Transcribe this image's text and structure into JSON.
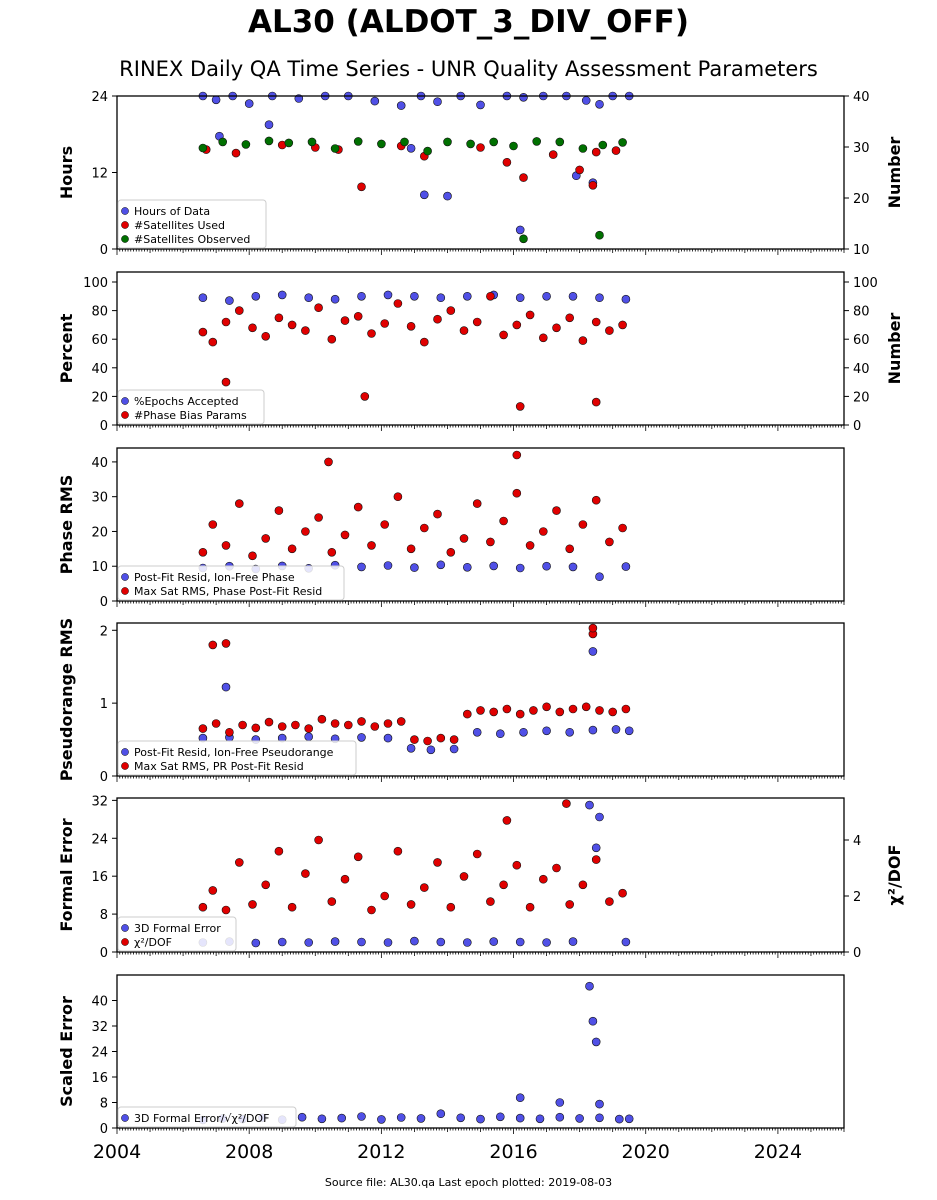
{
  "figure": {
    "title": "AL30 (ALDOT_3_DIV_OFF)",
    "subtitle": "RINEX Daily QA Time Series - UNR Quality Assessment Parameters",
    "footer": "Source file: AL30.qa Last epoch plotted: 2019-08-03"
  },
  "chart_data": [
    {
      "type": "scatter",
      "ylabel": "Hours",
      "ylabel_right": "Number",
      "ylim": [
        0,
        24
      ],
      "yticks": [
        0,
        12,
        24
      ],
      "ylim_right": [
        10,
        40
      ],
      "yticks_right": [
        10,
        20,
        30,
        40
      ],
      "xlim": [
        2004,
        2026
      ],
      "xticks": [
        2004,
        2008,
        2012,
        2016,
        2020,
        2024
      ],
      "xtick_labels_shown": false,
      "legend": "lower-left",
      "series": [
        {
          "name": "Hours of Data",
          "axis": "left",
          "color": "#5050e6",
          "x": [
            2006.6,
            2007.0,
            2007.5,
            2008.0,
            2008.7,
            2009.5,
            2010.3,
            2011.0,
            2011.8,
            2012.6,
            2013.2,
            2013.7,
            2014.4,
            2015.0,
            2015.8,
            2016.3,
            2016.9,
            2017.6,
            2018.2,
            2018.6,
            2019.0,
            2019.5,
            2007.1,
            2008.6,
            2012.9,
            2013.3,
            2014.0,
            2016.2,
            2017.9,
            2018.4
          ],
          "y": [
            24,
            23.4,
            24,
            22.8,
            24,
            23.6,
            24,
            24,
            23.2,
            22.5,
            24,
            23.1,
            24,
            22.6,
            24,
            23.8,
            24,
            24,
            23.3,
            22.7,
            24,
            24,
            17.7,
            19.5,
            15.8,
            8.5,
            8.3,
            3.0,
            11.5,
            10.4
          ]
        },
        {
          "name": "#Satellites Used",
          "axis": "right",
          "color": "#e00000",
          "x": [
            2006.7,
            2007.6,
            2009.0,
            2010.0,
            2010.7,
            2012.6,
            2013.3,
            2015.0,
            2015.8,
            2016.3,
            2017.2,
            2018.0,
            2018.5,
            2019.1,
            2011.4,
            2018.4
          ],
          "y": [
            29.5,
            28.8,
            30.4,
            29.9,
            29.5,
            30.2,
            28.2,
            29.9,
            27.0,
            24.0,
            28.5,
            25.5,
            29.0,
            29.3,
            22.2,
            22.5
          ]
        },
        {
          "name": "#Satellites Observed",
          "axis": "right",
          "color": "#007000",
          "x": [
            2006.6,
            2007.2,
            2007.9,
            2008.6,
            2009.2,
            2009.9,
            2010.6,
            2011.3,
            2012.0,
            2012.7,
            2013.4,
            2014.0,
            2014.7,
            2015.4,
            2016.0,
            2016.7,
            2017.4,
            2018.1,
            2018.7,
            2019.3,
            2016.3,
            2018.6
          ],
          "y": [
            29.8,
            31.0,
            30.5,
            31.2,
            30.8,
            31.0,
            29.7,
            31.1,
            30.6,
            31.0,
            29.2,
            31.0,
            30.6,
            31.0,
            30.2,
            31.1,
            31.0,
            29.7,
            30.4,
            30.9,
            12.0,
            12.7
          ]
        }
      ]
    },
    {
      "type": "scatter",
      "ylabel": "Percent",
      "ylabel_right": "Number",
      "ylim": [
        0,
        107
      ],
      "yticks": [
        0,
        20,
        40,
        60,
        80,
        100
      ],
      "ylim_right": [
        0,
        107
      ],
      "yticks_right": [
        0,
        20,
        40,
        60,
        80,
        100
      ],
      "xlim": [
        2004,
        2026
      ],
      "xticks": [
        2004,
        2008,
        2012,
        2016,
        2020,
        2024
      ],
      "xtick_labels_shown": false,
      "legend": "lower-left",
      "series": [
        {
          "name": "%Epochs Accepted",
          "axis": "left",
          "color": "#5050e6",
          "x": [
            2006.6,
            2007.4,
            2008.2,
            2009.0,
            2009.8,
            2010.6,
            2011.4,
            2012.2,
            2013.0,
            2013.8,
            2014.6,
            2015.4,
            2016.2,
            2017.0,
            2017.8,
            2018.6,
            2019.4
          ],
          "y": [
            89,
            87,
            90,
            91,
            89,
            88,
            90,
            91,
            90,
            89,
            90,
            91,
            89,
            90,
            90,
            89,
            88
          ]
        },
        {
          "name": "#Phase Bias Params",
          "axis": "right",
          "color": "#e00000",
          "x": [
            2006.6,
            2006.9,
            2007.3,
            2007.7,
            2008.1,
            2008.5,
            2008.9,
            2009.3,
            2009.7,
            2010.1,
            2010.5,
            2010.9,
            2011.3,
            2011.7,
            2012.1,
            2012.5,
            2012.9,
            2013.3,
            2013.7,
            2014.1,
            2014.5,
            2014.9,
            2015.3,
            2015.7,
            2016.1,
            2016.5,
            2016.9,
            2017.3,
            2017.7,
            2018.1,
            2018.5,
            2018.9,
            2019.3,
            2007.3,
            2011.5,
            2016.2,
            2018.5
          ],
          "y": [
            65,
            58,
            72,
            80,
            68,
            62,
            75,
            70,
            66,
            82,
            60,
            73,
            76,
            64,
            71,
            85,
            69,
            58,
            74,
            80,
            66,
            72,
            90,
            63,
            70,
            77,
            61,
            68,
            75,
            59,
            72,
            66,
            70,
            30,
            20,
            13,
            16
          ]
        }
      ]
    },
    {
      "type": "scatter",
      "ylabel": "Phase RMS",
      "ylim": [
        0,
        44
      ],
      "yticks": [
        0,
        10,
        20,
        30,
        40
      ],
      "xlim": [
        2004,
        2026
      ],
      "xticks": [
        2004,
        2008,
        2012,
        2016,
        2020,
        2024
      ],
      "xtick_labels_shown": false,
      "legend": "lower-left",
      "series": [
        {
          "name": "Post-Fit Resid, Ion-Free Phase",
          "color": "#5050e6",
          "x": [
            2006.6,
            2007.4,
            2008.2,
            2009.0,
            2009.8,
            2010.6,
            2011.4,
            2012.2,
            2013.0,
            2013.8,
            2014.6,
            2015.4,
            2016.2,
            2017.0,
            2017.8,
            2018.6,
            2019.4
          ],
          "y": [
            9.5,
            10.0,
            9.2,
            10.1,
            9.4,
            10.3,
            9.8,
            10.2,
            9.6,
            10.4,
            9.7,
            10.1,
            9.5,
            10.0,
            9.8,
            7.0,
            9.9
          ]
        },
        {
          "name": "Max Sat RMS, Phase Post-Fit Resid",
          "color": "#e00000",
          "x": [
            2006.6,
            2006.9,
            2007.3,
            2007.7,
            2008.1,
            2008.5,
            2008.9,
            2009.3,
            2009.7,
            2010.1,
            2010.5,
            2010.9,
            2011.3,
            2011.7,
            2012.1,
            2012.5,
            2012.9,
            2013.3,
            2013.7,
            2014.1,
            2014.5,
            2014.9,
            2015.3,
            2015.7,
            2016.1,
            2016.5,
            2016.9,
            2017.3,
            2017.7,
            2018.1,
            2018.5,
            2018.9,
            2019.3,
            2010.4,
            2016.1
          ],
          "y": [
            14,
            22,
            16,
            28,
            13,
            18,
            26,
            15,
            20,
            24,
            14,
            19,
            27,
            16,
            22,
            30,
            15,
            21,
            25,
            14,
            18,
            28,
            17,
            23,
            31,
            16,
            20,
            26,
            15,
            22,
            29,
            17,
            21,
            40,
            42
          ]
        }
      ]
    },
    {
      "type": "scatter",
      "ylabel": "Pseudorange RMS",
      "ylim": [
        0,
        2.1
      ],
      "yticks": [
        0,
        1,
        2
      ],
      "xlim": [
        2004,
        2026
      ],
      "xticks": [
        2004,
        2008,
        2012,
        2016,
        2020,
        2024
      ],
      "xtick_labels_shown": false,
      "legend": "lower-left",
      "series": [
        {
          "name": "Post-Fit Resid, Ion-Free Pseudorange",
          "color": "#5050e6",
          "x": [
            2006.6,
            2007.4,
            2008.2,
            2009.0,
            2009.8,
            2010.6,
            2011.4,
            2012.2,
            2012.9,
            2013.5,
            2014.2,
            2014.9,
            2015.6,
            2016.3,
            2017.0,
            2017.7,
            2018.4,
            2019.1,
            2019.5,
            2007.3,
            2018.4
          ],
          "y": [
            0.52,
            0.53,
            0.5,
            0.52,
            0.54,
            0.51,
            0.53,
            0.52,
            0.38,
            0.36,
            0.37,
            0.6,
            0.58,
            0.6,
            0.62,
            0.6,
            0.63,
            0.64,
            0.62,
            1.22,
            1.71
          ]
        },
        {
          "name": "Max Sat RMS, PR Post-Fit Resid",
          "color": "#e00000",
          "x": [
            2006.6,
            2007.0,
            2007.4,
            2007.8,
            2008.2,
            2008.6,
            2009.0,
            2009.4,
            2009.8,
            2010.2,
            2010.6,
            2011.0,
            2011.4,
            2011.8,
            2012.2,
            2012.6,
            2013.0,
            2013.4,
            2013.8,
            2014.2,
            2014.6,
            2015.0,
            2015.4,
            2015.8,
            2016.2,
            2016.6,
            2017.0,
            2017.4,
            2017.8,
            2018.2,
            2018.6,
            2019.0,
            2019.4,
            2006.9,
            2007.3,
            2018.4,
            2018.4
          ],
          "y": [
            0.65,
            0.72,
            0.6,
            0.7,
            0.66,
            0.74,
            0.68,
            0.7,
            0.65,
            0.78,
            0.72,
            0.7,
            0.75,
            0.68,
            0.72,
            0.75,
            0.5,
            0.48,
            0.52,
            0.5,
            0.85,
            0.9,
            0.88,
            0.92,
            0.85,
            0.9,
            0.95,
            0.88,
            0.92,
            0.95,
            0.9,
            0.88,
            0.92,
            1.8,
            1.82,
            1.95,
            2.03
          ]
        }
      ]
    },
    {
      "type": "scatter",
      "ylabel": "Formal Error",
      "ylabel_right": "χ²/DOF",
      "ylim": [
        0,
        32.5
      ],
      "yticks": [
        0,
        8,
        16,
        24,
        32
      ],
      "ylim_right": [
        0,
        5.5
      ],
      "yticks_right": [
        0,
        2,
        4
      ],
      "xlim": [
        2004,
        2026
      ],
      "xticks": [
        2004,
        2008,
        2012,
        2016,
        2020,
        2024
      ],
      "xtick_labels_shown": false,
      "legend": "lower-left",
      "series": [
        {
          "name": "3D Formal Error",
          "axis": "left",
          "color": "#5050e6",
          "x": [
            2006.6,
            2007.4,
            2008.2,
            2009.0,
            2009.8,
            2010.6,
            2011.4,
            2012.2,
            2013.0,
            2013.8,
            2014.6,
            2015.4,
            2016.2,
            2017.0,
            2017.8,
            2018.3,
            2018.5,
            2018.6,
            2019.4
          ],
          "y": [
            2.0,
            2.2,
            1.9,
            2.1,
            2.0,
            2.2,
            2.1,
            2.0,
            2.3,
            2.1,
            2.0,
            2.2,
            2.1,
            2.0,
            2.2,
            31.0,
            22.0,
            28.5,
            2.1
          ]
        },
        {
          "name": "χ²/DOF",
          "axis": "right",
          "color": "#e00000",
          "x": [
            2006.6,
            2006.9,
            2007.3,
            2007.7,
            2008.1,
            2008.5,
            2008.9,
            2009.3,
            2009.7,
            2010.1,
            2010.5,
            2010.9,
            2011.3,
            2011.7,
            2012.1,
            2012.5,
            2012.9,
            2013.3,
            2013.7,
            2014.1,
            2014.5,
            2014.9,
            2015.3,
            2015.7,
            2016.1,
            2016.5,
            2016.9,
            2017.3,
            2017.7,
            2018.1,
            2018.5,
            2018.9,
            2019.3,
            2017.6,
            2015.8
          ],
          "y": [
            1.6,
            2.2,
            1.5,
            3.2,
            1.7,
            2.4,
            3.6,
            1.6,
            2.8,
            4.0,
            1.8,
            2.6,
            3.4,
            1.5,
            2.0,
            3.6,
            1.7,
            2.3,
            3.2,
            1.6,
            2.7,
            3.5,
            1.8,
            2.4,
            3.1,
            1.6,
            2.6,
            3.0,
            1.7,
            2.4,
            3.3,
            1.8,
            2.1,
            5.3,
            4.7
          ]
        }
      ]
    },
    {
      "type": "scatter",
      "ylabel": "Scaled Error",
      "ylim": [
        0,
        48
      ],
      "yticks": [
        0,
        8,
        16,
        24,
        32,
        40
      ],
      "xlim": [
        2004,
        2026
      ],
      "xticks": [
        2004,
        2008,
        2012,
        2016,
        2020,
        2024
      ],
      "xtick_labels_shown": true,
      "legend": "lower-left",
      "series": [
        {
          "name": "3D Formal Error/√χ²/DOF",
          "color": "#5050e6",
          "x": [
            2006.6,
            2007.2,
            2007.8,
            2008.4,
            2009.0,
            2009.6,
            2010.2,
            2010.8,
            2011.4,
            2012.0,
            2012.6,
            2013.2,
            2013.8,
            2014.4,
            2015.0,
            2015.6,
            2016.2,
            2016.8,
            2017.4,
            2018.0,
            2018.6,
            2019.2,
            2019.5,
            2016.2,
            2017.4,
            2018.3,
            2018.4,
            2018.5,
            2018.6
          ],
          "y": [
            2.5,
            3.0,
            2.8,
            3.2,
            2.6,
            3.4,
            2.9,
            3.1,
            3.6,
            2.7,
            3.3,
            3.0,
            4.5,
            3.2,
            2.8,
            3.5,
            3.1,
            2.9,
            3.4,
            3.0,
            3.2,
            2.8,
            2.9,
            9.5,
            8.0,
            44.5,
            33.5,
            27.0,
            7.5
          ]
        }
      ]
    }
  ]
}
